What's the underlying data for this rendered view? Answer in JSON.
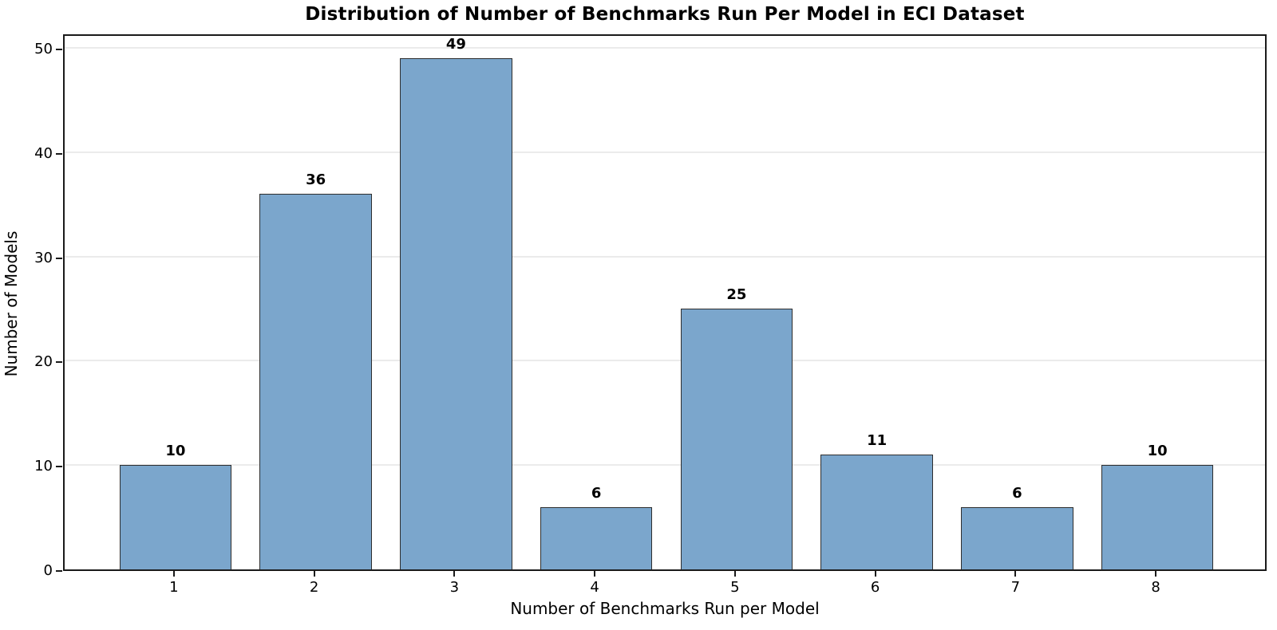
{
  "chart_data": {
    "type": "bar",
    "title": "Distribution of Number of Benchmarks Run Per Model in ECI Dataset",
    "xlabel": "Number of Benchmarks Run per Model",
    "ylabel": "Number of Models",
    "categories": [
      "1",
      "2",
      "3",
      "4",
      "5",
      "6",
      "7",
      "8"
    ],
    "values": [
      10,
      36,
      49,
      6,
      25,
      11,
      6,
      10
    ],
    "bar_labels": [
      "10",
      "36",
      "49",
      "6",
      "25",
      "11",
      "6",
      "10"
    ],
    "yticks": [
      0,
      10,
      20,
      30,
      40,
      50
    ],
    "ytick_labels": [
      "0",
      "10",
      "20",
      "30",
      "40",
      "50"
    ],
    "ylim": [
      0,
      51.45
    ],
    "xlim": [
      0.21,
      8.79
    ],
    "bar_width_data_units": 0.8,
    "grid": "horizontal",
    "legend_position": "none",
    "colors": {
      "bar_fill": "#7BA6CC",
      "bar_edge": "#2e2e2e",
      "gridline": "#ebebeb",
      "spine": "#1a1a1a",
      "text": "#000000",
      "background": "#ffffff"
    }
  }
}
